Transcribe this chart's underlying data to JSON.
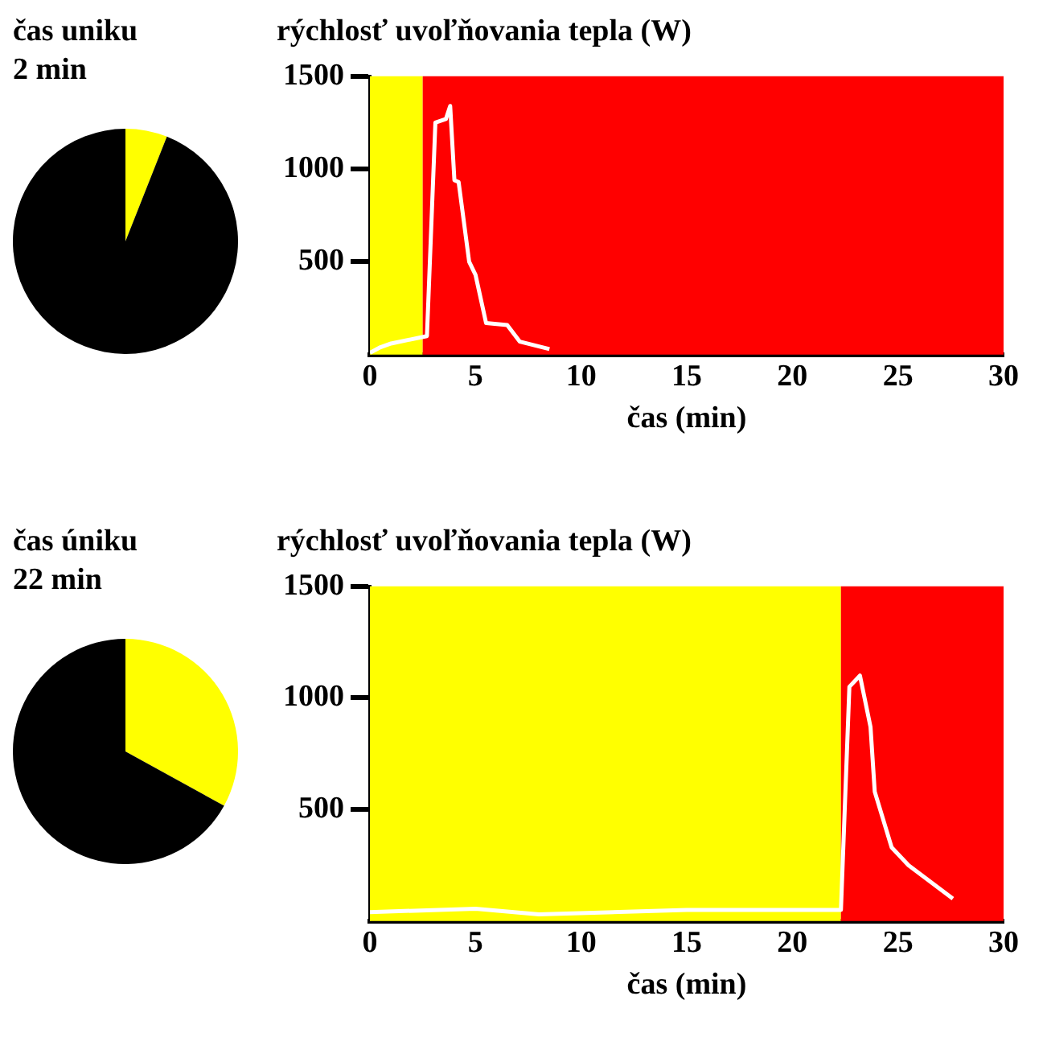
{
  "chart_data": [
    {
      "type": "pie",
      "title": "čas uniku",
      "subtitle": "2 min",
      "categories": [
        null,
        null
      ],
      "values": [
        6,
        94
      ],
      "colors": [
        "#ffff00",
        "#000000"
      ]
    },
    {
      "type": "line",
      "ylabel": "rýchlosť uvoľňovania tepla (W)",
      "xlabel": "čas (min)",
      "xlim": [
        0,
        30
      ],
      "xticks": [
        0,
        5,
        10,
        15,
        20,
        25,
        30
      ],
      "ylim": [
        0,
        1500
      ],
      "yticks": [
        500,
        1000,
        1500
      ],
      "grid": false,
      "bands": [
        {
          "axis": "x",
          "from": 0,
          "to": 2.5,
          "color": "#ffff00"
        },
        {
          "axis": "x",
          "from": 2.5,
          "to": 30,
          "color": "#ff0000"
        }
      ],
      "series": [
        {
          "color": "#ffffff",
          "x": [
            0,
            0.5,
            1,
            2.7,
            3.1,
            3.6,
            3.8,
            4.0,
            4.2,
            4.7,
            5.0,
            5.5,
            6.5,
            7.1,
            8.5
          ],
          "values": [
            10,
            40,
            60,
            100,
            1250,
            1270,
            1340,
            940,
            930,
            500,
            430,
            170,
            160,
            70,
            30
          ]
        }
      ]
    },
    {
      "type": "pie",
      "title": "čas úniku",
      "subtitle": "22 min",
      "categories": [
        null,
        null
      ],
      "values": [
        33,
        67
      ],
      "colors": [
        "#ffff00",
        "#000000"
      ]
    },
    {
      "type": "line",
      "ylabel": "rýchlosť uvoľňovania tepla (W)",
      "xlabel": "čas (min)",
      "xlim": [
        0,
        30
      ],
      "xticks": [
        0,
        5,
        10,
        15,
        20,
        25,
        30
      ],
      "ylim": [
        0,
        1500
      ],
      "yticks": [
        500,
        1000,
        1500
      ],
      "grid": false,
      "bands": [
        {
          "axis": "x",
          "from": 0,
          "to": 22.3,
          "color": "#ffff00"
        },
        {
          "axis": "x",
          "from": 22.3,
          "to": 30,
          "color": "#ff0000"
        }
      ],
      "series": [
        {
          "color": "#ffffff",
          "x": [
            0,
            5,
            8,
            15,
            22.3,
            22.7,
            23.2,
            23.7,
            23.9,
            24.7,
            25.5,
            27.6
          ],
          "values": [
            40,
            55,
            30,
            50,
            50,
            1050,
            1100,
            870,
            580,
            330,
            250,
            100
          ]
        }
      ]
    }
  ]
}
